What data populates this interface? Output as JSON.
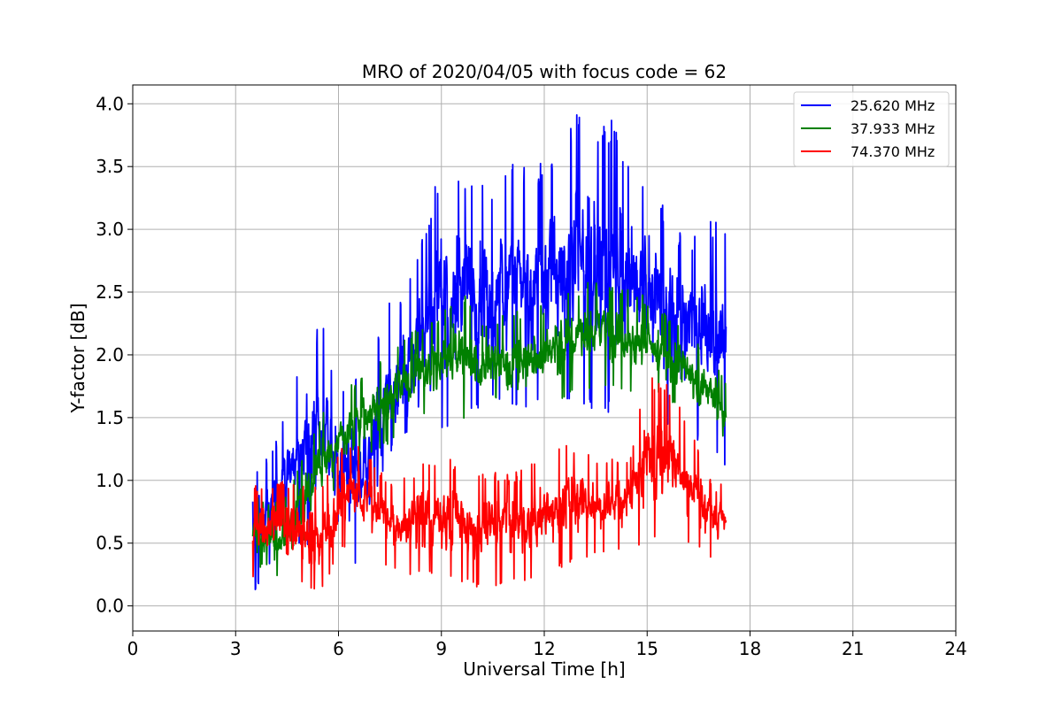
{
  "chart_data": {
    "type": "line",
    "title": "MRO of 2020/04/05 with focus code = 62",
    "xlabel": "Universal Time [h]",
    "ylabel": "Y-factor [dB]",
    "xlim": [
      0,
      24
    ],
    "ylim": [
      -0.2,
      4.15
    ],
    "xticks": [
      0,
      3,
      6,
      9,
      12,
      15,
      18,
      21,
      24
    ],
    "xtick_labels": [
      "0",
      "3",
      "6",
      "9",
      "12",
      "15",
      "18",
      "21",
      "24"
    ],
    "yticks": [
      0.0,
      0.5,
      1.0,
      1.5,
      2.0,
      2.5,
      3.0,
      3.5,
      4.0
    ],
    "ytick_labels": [
      "0.0",
      "0.5",
      "1.0",
      "1.5",
      "2.0",
      "2.5",
      "3.0",
      "3.5",
      "4.0"
    ],
    "grid": true,
    "legend_position": "top-right",
    "series": [
      {
        "name": "25.620 MHz",
        "color": "#0000ff",
        "x": [
          3.5,
          4.0,
          4.5,
          5.0,
          5.5,
          6.0,
          6.5,
          7.0,
          7.5,
          8.0,
          8.5,
          9.0,
          9.5,
          10.0,
          10.5,
          11.0,
          11.5,
          12.0,
          12.5,
          13.0,
          13.5,
          14.0,
          14.5,
          15.0,
          15.5,
          16.0,
          16.5,
          17.0,
          17.3
        ],
        "low": [
          0.1,
          0.3,
          0.4,
          0.45,
          0.55,
          0.35,
          0.3,
          0.5,
          0.8,
          1.0,
          1.2,
          1.35,
          1.45,
          1.55,
          1.6,
          1.6,
          1.55,
          1.6,
          1.65,
          1.6,
          1.55,
          1.5,
          1.45,
          1.5,
          1.45,
          1.4,
          1.3,
          1.25,
          1.05
        ],
        "high": [
          1.1,
          1.2,
          1.6,
          2.1,
          2.3,
          1.7,
          1.85,
          2.0,
          2.5,
          2.6,
          3.1,
          3.5,
          3.55,
          3.45,
          3.25,
          3.55,
          3.5,
          3.55,
          3.7,
          3.95,
          3.8,
          3.9,
          3.65,
          3.5,
          3.2,
          3.0,
          2.95,
          3.15,
          3.1
        ]
      },
      {
        "name": "37.933 MHz",
        "color": "#008000",
        "x": [
          3.5,
          4.0,
          4.5,
          5.0,
          5.5,
          6.0,
          6.5,
          7.0,
          7.5,
          8.0,
          8.5,
          9.0,
          9.5,
          10.0,
          10.5,
          11.0,
          11.5,
          12.0,
          12.5,
          13.0,
          13.5,
          14.0,
          14.5,
          15.0,
          15.5,
          16.0,
          16.5,
          17.0,
          17.3
        ],
        "low": [
          0.1,
          0.2,
          0.25,
          0.3,
          0.7,
          1.0,
          1.1,
          1.2,
          1.3,
          1.45,
          1.5,
          1.55,
          1.5,
          1.45,
          1.45,
          1.5,
          1.55,
          1.6,
          1.65,
          1.7,
          1.75,
          1.75,
          1.7,
          1.75,
          1.65,
          1.55,
          1.45,
          1.35,
          1.1
        ],
        "high": [
          0.9,
          0.8,
          0.9,
          1.3,
          1.55,
          1.65,
          1.8,
          1.9,
          2.05,
          2.15,
          2.25,
          2.3,
          2.6,
          2.3,
          2.3,
          2.35,
          2.35,
          2.4,
          2.5,
          2.55,
          2.6,
          2.55,
          2.55,
          2.45,
          2.35,
          2.25,
          2.1,
          2.0,
          1.8
        ]
      },
      {
        "name": "74.370 MHz",
        "color": "#ff0000",
        "x": [
          3.5,
          4.0,
          4.5,
          5.0,
          5.5,
          6.0,
          6.5,
          7.0,
          7.5,
          8.0,
          8.5,
          9.0,
          9.5,
          10.0,
          10.5,
          11.0,
          11.5,
          12.0,
          12.5,
          13.0,
          13.5,
          14.0,
          14.5,
          15.0,
          15.5,
          16.0,
          16.5,
          17.0,
          17.3
        ],
        "low": [
          0.2,
          0.25,
          0.2,
          0.15,
          0.1,
          0.4,
          0.55,
          0.4,
          0.3,
          0.25,
          0.25,
          0.2,
          0.2,
          0.15,
          0.15,
          0.2,
          0.2,
          0.25,
          0.3,
          0.35,
          0.4,
          0.45,
          0.45,
          0.5,
          0.55,
          0.5,
          0.45,
          0.35,
          0.5
        ],
        "high": [
          0.95,
          1.0,
          1.0,
          1.0,
          0.95,
          1.25,
          1.35,
          1.15,
          1.0,
          1.05,
          1.15,
          1.2,
          1.15,
          1.05,
          1.1,
          1.05,
          1.1,
          1.25,
          1.3,
          1.3,
          1.2,
          1.2,
          1.2,
          1.85,
          1.85,
          1.6,
          1.25,
          0.95,
          1.0
        ]
      }
    ]
  }
}
